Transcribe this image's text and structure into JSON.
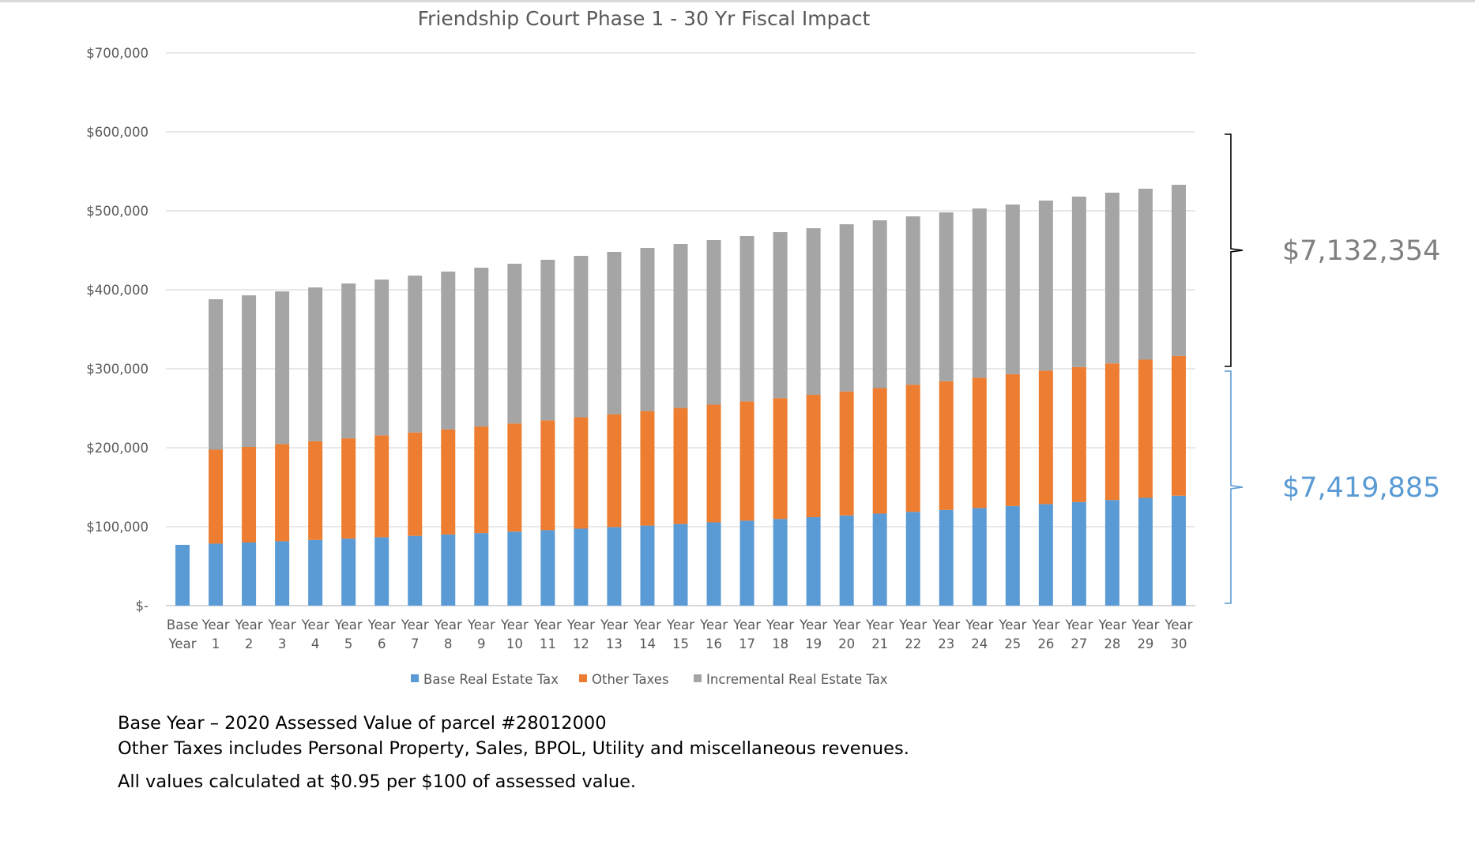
{
  "chart_data": {
    "type": "bar",
    "stacked": true,
    "title": "Friendship Court Phase 1  - 30 Yr Fiscal Impact",
    "xlabel": "",
    "ylabel": "",
    "ylim": [
      0,
      700000
    ],
    "yticks": [
      0,
      100000,
      200000,
      300000,
      400000,
      500000,
      600000,
      700000
    ],
    "ytick_labels": [
      "$-",
      "$100,000",
      "$200,000",
      "$300,000",
      "$400,000",
      "$500,000",
      "$600,000",
      "$700,000"
    ],
    "grid": true,
    "legend_position": "bottom",
    "categories": [
      [
        "Base",
        "Year"
      ],
      [
        "Year",
        "1"
      ],
      [
        "Year",
        "2"
      ],
      [
        "Year",
        "3"
      ],
      [
        "Year",
        "4"
      ],
      [
        "Year",
        "5"
      ],
      [
        "Year",
        "6"
      ],
      [
        "Year",
        "7"
      ],
      [
        "Year",
        "8"
      ],
      [
        "Year",
        "9"
      ],
      [
        "Year",
        "10"
      ],
      [
        "Year",
        "11"
      ],
      [
        "Year",
        "12"
      ],
      [
        "Year",
        "13"
      ],
      [
        "Year",
        "14"
      ],
      [
        "Year",
        "15"
      ],
      [
        "Year",
        "16"
      ],
      [
        "Year",
        "17"
      ],
      [
        "Year",
        "18"
      ],
      [
        "Year",
        "19"
      ],
      [
        "Year",
        "20"
      ],
      [
        "Year",
        "21"
      ],
      [
        "Year",
        "22"
      ],
      [
        "Year",
        "23"
      ],
      [
        "Year",
        "24"
      ],
      [
        "Year",
        "25"
      ],
      [
        "Year",
        "26"
      ],
      [
        "Year",
        "27"
      ],
      [
        "Year",
        "28"
      ],
      [
        "Year",
        "29"
      ],
      [
        "Year",
        "30"
      ]
    ],
    "series": [
      {
        "name": "Base Real Estate Tax",
        "color": "#5b9bd5",
        "values": [
          77000,
          78500,
          80000,
          81600,
          83200,
          84900,
          86600,
          88300,
          90100,
          91900,
          93700,
          95600,
          97500,
          99400,
          101400,
          103400,
          105500,
          107600,
          109800,
          112000,
          114200,
          116500,
          118800,
          121200,
          123600,
          126100,
          128600,
          131200,
          133800,
          136500,
          139200
        ]
      },
      {
        "name": "Other Taxes",
        "color": "#ed7d31",
        "values": [
          0,
          119000,
          121000,
          123000,
          125000,
          127000,
          129000,
          131000,
          133000,
          135000,
          137000,
          139000,
          141000,
          143000,
          145000,
          147000,
          149000,
          151000,
          153000,
          155000,
          157000,
          159000,
          161000,
          163000,
          165000,
          167000,
          169000,
          171000,
          173000,
          175000,
          177000
        ]
      },
      {
        "name": "Incremental Real Estate Tax",
        "color": "#a5a5a5",
        "values": [
          0,
          190500,
          192000,
          193400,
          194800,
          196100,
          197400,
          198700,
          200000,
          201100,
          202300,
          203400,
          204500,
          205600,
          206600,
          207600,
          208500,
          209400,
          210200,
          211000,
          211800,
          212500,
          213200,
          213800,
          214400,
          214900,
          215400,
          215800,
          216200,
          216500,
          216800
        ]
      }
    ],
    "annotations": [
      {
        "text": "$7,132,354",
        "color": "#7f7f7f",
        "brace_from": 300000,
        "brace_to": 600000
      },
      {
        "text": "$7,419,885",
        "color": "#5b9bd5",
        "brace_from": 0,
        "brace_to": 300000
      }
    ]
  },
  "notes": [
    "Base Year – 2020 Assessed Value of parcel #28012000",
    "Other Taxes includes Personal Property, Sales, BPOL, Utility and miscellaneous revenues.",
    "All values calculated at $0.95 per $100 of assessed value."
  ]
}
